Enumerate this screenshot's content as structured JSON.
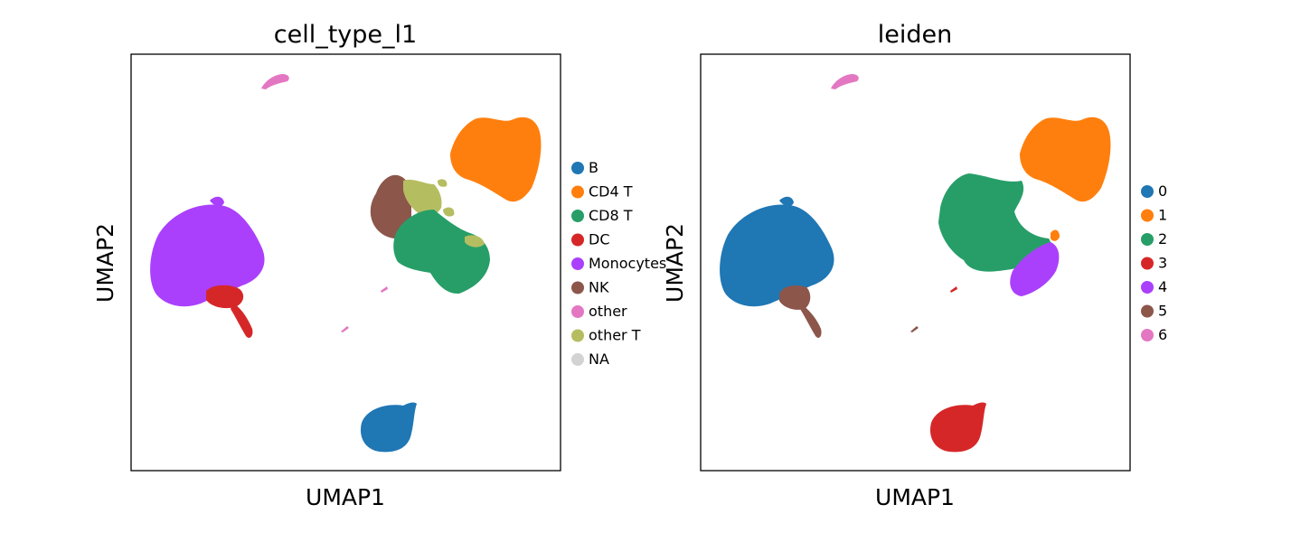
{
  "chart_data": [
    {
      "type": "scatter",
      "title": "cell_type_l1",
      "xlabel": "UMAP1",
      "ylabel": "UMAP2",
      "grid": false,
      "ticks": false,
      "legend_position": "right",
      "series": [
        {
          "name": "B",
          "color": "#1f77b4"
        },
        {
          "name": "CD4 T",
          "color": "#ff7f0e"
        },
        {
          "name": "CD8 T",
          "color": "#279e68"
        },
        {
          "name": "DC",
          "color": "#d62728"
        },
        {
          "name": "Monocytes",
          "color": "#aa40fc"
        },
        {
          "name": "NK",
          "color": "#8c564b"
        },
        {
          "name": "other",
          "color": "#e377c2"
        },
        {
          "name": "other T",
          "color": "#b5bd61"
        },
        {
          "name": "NA",
          "color": "#d3d3d3"
        }
      ]
    },
    {
      "type": "scatter",
      "title": "leiden",
      "xlabel": "UMAP1",
      "ylabel": "UMAP2",
      "grid": false,
      "ticks": false,
      "legend_position": "right",
      "series": [
        {
          "name": "0",
          "color": "#1f77b4"
        },
        {
          "name": "1",
          "color": "#ff7f0e"
        },
        {
          "name": "2",
          "color": "#279e68"
        },
        {
          "name": "3",
          "color": "#d62728"
        },
        {
          "name": "4",
          "color": "#aa40fc"
        },
        {
          "name": "5",
          "color": "#8c564b"
        },
        {
          "name": "6",
          "color": "#e377c2"
        }
      ]
    }
  ]
}
